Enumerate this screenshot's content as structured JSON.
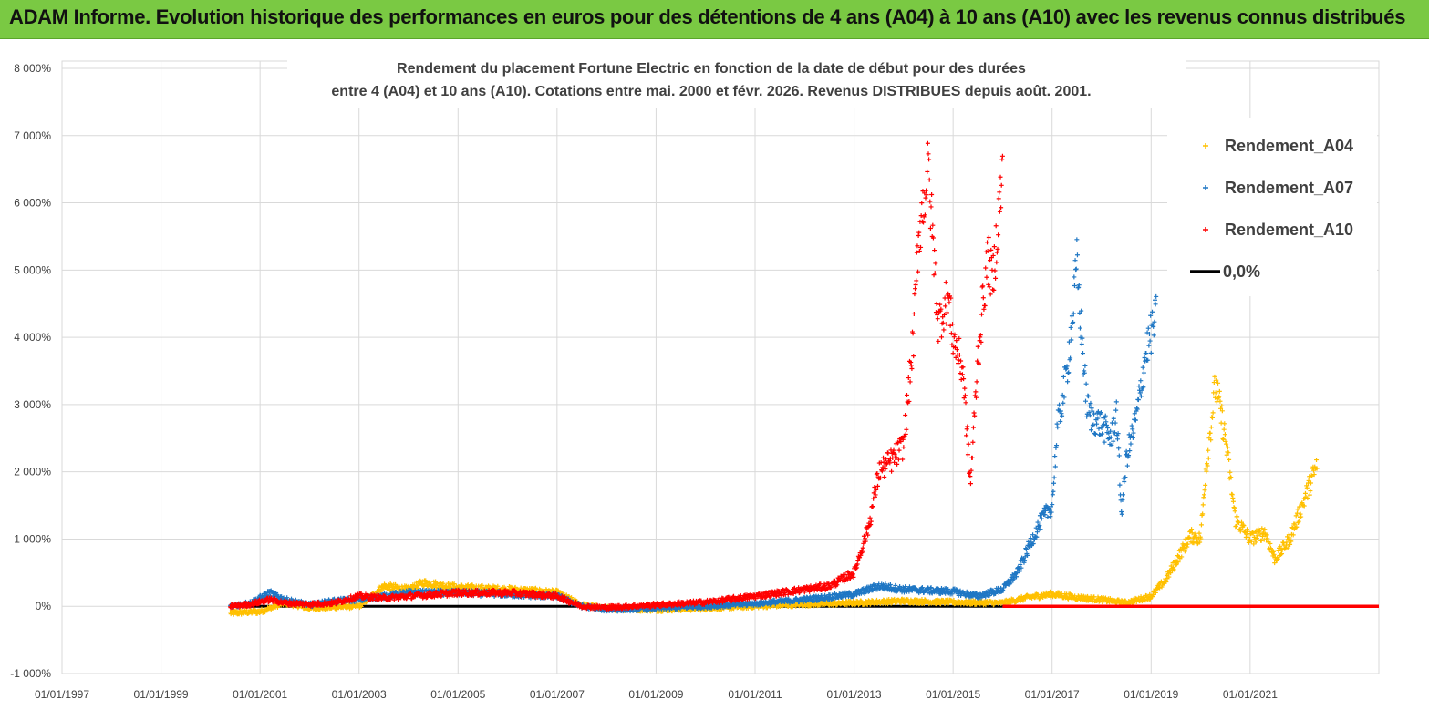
{
  "header": {
    "title": "ADAM Informe. Evolution historique des performances en euros pour des détentions de 4 ans (A04) à 10 ans (A10) avec les revenus connus distribués"
  },
  "chart_data": {
    "type": "scatter",
    "title_lines": [
      "Rendement du placement Fortune Electric  en fonction de la date de début pour des durées",
      "entre 4 (A04) et 10 ans (A10). Cotations entre mai. 2000 et févr. 2026. Revenus DISTRIBUES depuis août. 2001."
    ],
    "xlabel": "",
    "ylabel": "",
    "x_range": [
      1997.0,
      2023.6
    ],
    "ylim": [
      -1000,
      8000
    ],
    "x_tick_labels": [
      "01/01/1997",
      "01/01/1999",
      "01/01/2001",
      "01/01/2003",
      "01/01/2005",
      "01/01/2007",
      "01/01/2009",
      "01/01/2011",
      "01/01/2013",
      "01/01/2015",
      "01/01/2017",
      "01/01/2019",
      "01/01/2021"
    ],
    "x_tick_values": [
      1997,
      1999,
      2001,
      2003,
      2005,
      2007,
      2009,
      2011,
      2013,
      2015,
      2017,
      2019,
      2021
    ],
    "y_tick_labels": [
      "-1 000%",
      "0%",
      "1 000%",
      "2 000%",
      "3 000%",
      "4 000%",
      "5 000%",
      "6 000%",
      "7 000%",
      "8 000%"
    ],
    "y_tick_values": [
      -1000,
      0,
      1000,
      2000,
      3000,
      4000,
      5000,
      6000,
      7000,
      8000
    ],
    "legend_position": "top-right",
    "series": [
      {
        "name": "Rendement_A04",
        "color": "#ffc000",
        "marker": "+",
        "x": [
          2000.4,
          2001.0,
          2001.5,
          2002.0,
          2003.0,
          2003.5,
          2004.0,
          2004.3,
          2005.0,
          2006.0,
          2006.5,
          2007.0,
          2007.5,
          2008.0,
          2009.0,
          2010.0,
          2011.0,
          2012.0,
          2013.0,
          2014.0,
          2015.0,
          2016.0,
          2016.5,
          2017.0,
          2017.5,
          2018.0,
          2018.5,
          2019.0,
          2019.3,
          2019.6,
          2019.8,
          2020.0,
          2020.1,
          2020.3,
          2020.5,
          2020.7,
          2021.0,
          2021.3,
          2021.5,
          2021.8,
          2022.0,
          2022.2,
          2022.35
        ],
        "y": [
          -100,
          -80,
          50,
          -30,
          0,
          300,
          250,
          350,
          280,
          250,
          230,
          200,
          20,
          -30,
          -50,
          -30,
          0,
          30,
          50,
          80,
          60,
          50,
          130,
          180,
          130,
          100,
          50,
          150,
          400,
          800,
          1050,
          1000,
          2000,
          3300,
          2500,
          1300,
          1000,
          1100,
          700,
          1000,
          1400,
          1800,
          2100
        ]
      },
      {
        "name": "Rendement_A07",
        "color": "#1f77c4",
        "marker": "+",
        "x": [
          2000.4,
          2000.8,
          2001.2,
          2001.5,
          2002.0,
          2002.5,
          2003.0,
          2004.0,
          2005.0,
          2006.0,
          2006.5,
          2007.0,
          2007.5,
          2008.0,
          2009.0,
          2010.0,
          2011.0,
          2012.0,
          2013.0,
          2013.5,
          2014.0,
          2015.0,
          2015.5,
          2016.0,
          2016.3,
          2016.6,
          2016.8,
          2017.0,
          2017.1,
          2017.3,
          2017.4,
          2017.5,
          2017.6,
          2017.7,
          2017.8,
          2018.0,
          2018.2,
          2018.3,
          2018.4,
          2018.5,
          2018.7,
          2018.9,
          2019.1
        ],
        "y": [
          0,
          50,
          200,
          100,
          20,
          80,
          100,
          200,
          200,
          180,
          160,
          150,
          0,
          -50,
          -30,
          0,
          40,
          100,
          180,
          300,
          250,
          220,
          150,
          250,
          500,
          1000,
          1300,
          1500,
          2600,
          3500,
          4200,
          5100,
          4000,
          3000,
          2800,
          2700,
          2500,
          2900,
          1400,
          2200,
          2800,
          3800,
          4300
        ]
      },
      {
        "name": "Rendement_A10",
        "color": "#ff0000",
        "marker": "+",
        "x": [
          2000.4,
          2000.8,
          2001.2,
          2001.5,
          2002.0,
          2002.5,
          2003.0,
          2003.5,
          2004.0,
          2005.0,
          2006.0,
          2006.5,
          2007.0,
          2007.5,
          2008.0,
          2009.0,
          2010.0,
          2011.0,
          2012.0,
          2012.5,
          2013.0,
          2013.3,
          2013.5,
          2013.8,
          2014.0,
          2014.2,
          2014.3,
          2014.5,
          2014.7,
          2014.9,
          2015.0,
          2015.2,
          2015.35,
          2015.5,
          2015.6,
          2015.7,
          2015.8,
          2016.0
        ],
        "y": [
          0,
          30,
          100,
          50,
          30,
          50,
          150,
          120,
          150,
          200,
          200,
          180,
          150,
          0,
          -20,
          20,
          60,
          150,
          250,
          300,
          500,
          1200,
          2000,
          2200,
          2400,
          4000,
          5500,
          6500,
          4200,
          4600,
          4000,
          3500,
          1800,
          3700,
          4500,
          5200,
          4800,
          6500
        ]
      },
      {
        "name": "0,0%",
        "color": "#000000",
        "marker": "line",
        "x": [
          2000.4,
          2016.0
        ],
        "y": [
          0,
          0
        ]
      }
    ],
    "trailing_zero_segments": [
      {
        "series": "Rendement_A10",
        "x": [
          2016.0,
          2023.6
        ],
        "y": 0
      },
      {
        "series": "Rendement_A07",
        "x": [
          2019.1,
          2023.6
        ],
        "y": 0
      },
      {
        "series": "Rendement_A04",
        "x": [
          2022.35,
          2023.6
        ],
        "y": 0
      }
    ]
  }
}
